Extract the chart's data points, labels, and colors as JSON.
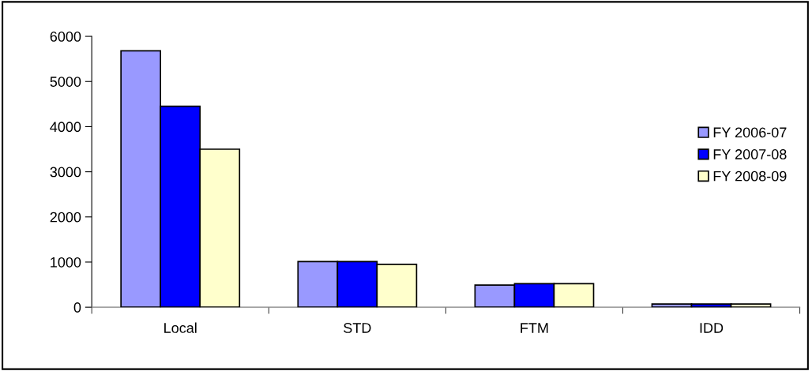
{
  "chart_data": {
    "type": "bar",
    "categories": [
      "Local",
      "STD",
      "FTM",
      "IDD"
    ],
    "series": [
      {
        "name": "FY 2006-07",
        "color": "#9999ff",
        "values": [
          5680,
          1010,
          490,
          70
        ]
      },
      {
        "name": "FY 2007-08",
        "color": "#0000ff",
        "values": [
          4450,
          1010,
          520,
          70
        ]
      },
      {
        "name": "FY 2008-09",
        "color": "#ffffcc",
        "values": [
          3500,
          950,
          520,
          70
        ]
      }
    ],
    "ylim": [
      0,
      6000
    ],
    "yticks": [
      0,
      1000,
      2000,
      3000,
      4000,
      5000,
      6000
    ],
    "grid": false,
    "legend": "right"
  }
}
